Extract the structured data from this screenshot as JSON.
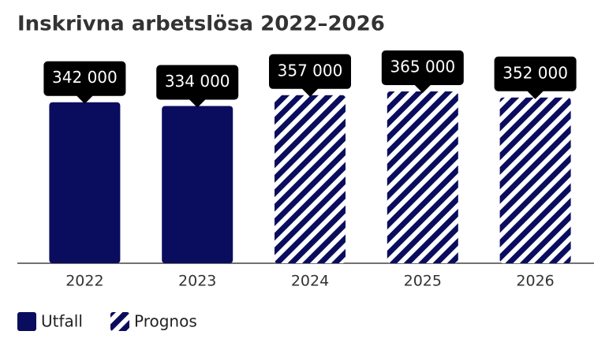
{
  "chart_data": {
    "type": "bar",
    "title": "Inskrivna arbetslösa 2022–2026",
    "categories": [
      "2022",
      "2023",
      "2024",
      "2025",
      "2026"
    ],
    "series": [
      {
        "name": "Utfall",
        "color": "#0a0d5e",
        "hatch": false,
        "values": [
          342000,
          334000,
          null,
          null,
          null
        ],
        "value_labels": [
          "342 000",
          "334 000",
          null,
          null,
          null
        ]
      },
      {
        "name": "Prognos",
        "color": "#0a0d5e",
        "hatch": true,
        "values": [
          null,
          null,
          357000,
          365000,
          352000
        ],
        "value_labels": [
          null,
          null,
          "357 000",
          "365 000",
          "352 000"
        ]
      }
    ]
  }
}
